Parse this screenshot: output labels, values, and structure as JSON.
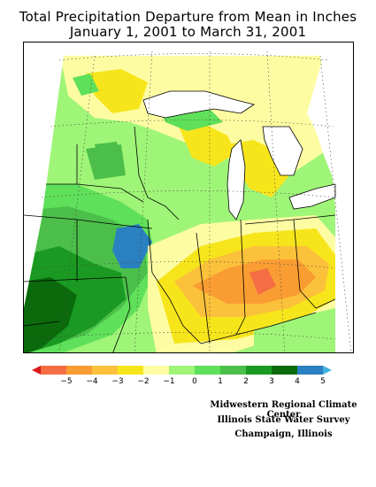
{
  "title": {
    "line1": "Total Precipitation Departure from Mean in Inches",
    "line2": "January 1, 2001 to March 31, 2001"
  },
  "legend": {
    "ticks": [
      "−5",
      "−4",
      "−3",
      "−2",
      "−1",
      "0",
      "1",
      "2",
      "3",
      "4",
      "5"
    ],
    "colors": [
      "#d7191c",
      "#f46d43",
      "#f99d32",
      "#fcc13a",
      "#f7e51c",
      "#fdfca2",
      "#9ff577",
      "#5fe05a",
      "#4cbf4a",
      "#1a9a22",
      "#0b6a0b",
      "#2a80c0",
      "#40aee0"
    ]
  },
  "credits": {
    "line1": "Midwestern Regional Climate Center",
    "line2": "Illinois State Water Survey",
    "line3": "Champaign, Illinois"
  }
}
